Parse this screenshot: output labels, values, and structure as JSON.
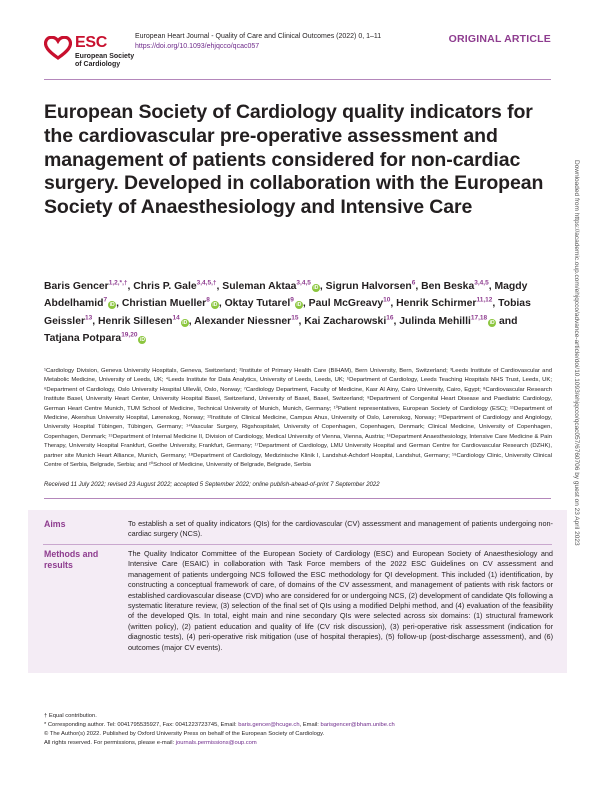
{
  "header": {
    "logo_text": "ESC",
    "logo_sub_1": "European Society",
    "logo_sub_2": "of Cardiology",
    "journal_line": "European Heart Journal - Quality of Care and Clinical Outcomes (2022) 0, 1–11",
    "doi": "https://doi.org/10.1093/ehjqcco/qcac057",
    "article_type": "ORIGINAL ARTICLE"
  },
  "side_note": "Downloaded from https://academic.oup.com/ehjqcco/advance-article/doi/10.1093/ehjqcco/qcac057/6760706 by guest on 23 April 2023",
  "title": "European Society of Cardiology quality indicators for the cardiovascular pre-operative assessment and management of patients considered for non-cardiac surgery. Developed in collaboration with the European Society of Anaesthesiology and Intensive Care",
  "authors": [
    {
      "name": "Baris Gencer",
      "sup": "1,2,*,†",
      "orcid": false
    },
    {
      "name": "Chris P. Gale",
      "sup": "3,4,5,†",
      "orcid": false
    },
    {
      "name": "Suleman Aktaa",
      "sup": "3,4,5",
      "orcid": true
    },
    {
      "name": "Sigrun Halvorsen",
      "sup": "6",
      "orcid": false
    },
    {
      "name": "Ben Beska",
      "sup": "3,4,5",
      "orcid": false
    },
    {
      "name": "Magdy Abdelhamid",
      "sup": "7",
      "orcid": true
    },
    {
      "name": "Christian Mueller",
      "sup": "8",
      "orcid": true
    },
    {
      "name": "Oktay Tutarel",
      "sup": "9",
      "orcid": true
    },
    {
      "name": "Paul McGreavy",
      "sup": "10",
      "orcid": false
    },
    {
      "name": "Henrik Schirmer",
      "sup": "11,12",
      "orcid": false
    },
    {
      "name": "Tobias Geissler",
      "sup": "13",
      "orcid": false
    },
    {
      "name": "Henrik Sillesen",
      "sup": "14",
      "orcid": true
    },
    {
      "name": "Alexander Niessner",
      "sup": "15",
      "orcid": false
    },
    {
      "name": "Kai Zacharowski",
      "sup": "16",
      "orcid": false
    },
    {
      "name": "Julinda Mehilli",
      "sup": "17,18",
      "orcid": true
    },
    {
      "name": "Tatjana Potpara",
      "sup": "19,20",
      "orcid": true
    }
  ],
  "authors_and": "and",
  "affiliations": "¹Cardiology Division, Geneva University Hospitals, Geneva, Switzerland; ²Institute of Primary Health Care (BIHAM), Bern University, Bern, Switzerland; ³Leeds Institute of Cardiovascular and Metabolic Medicine, University of Leeds, UK; ⁴Leeds Institute for Data Analytics, University of Leeds, Leeds, UK; ⁵Department of Cardiology, Leeds Teaching Hospitals NHS Trust, Leeds, UK; ⁶Department of Cardiology, Oslo University Hospital Ullevål, Oslo, Norway; ⁷Cardiology Department, Faculty of Medicine, Kasr Al Ainy, Cairo University, Cairo, Egypt; ⁸Cardiovascular Research Institute Basel, University Heart Center, University Hospital Basel, Switzerland, University of Basel, Basel, Switzerland; ⁹Department of Congenital Heart Disease and Paediatric Cardiology, German Heart Centre Munich, TUM School of Medicine, Technical University of Munich, Munich, Germany; ¹⁰Patient representatives, European Society of Cardiology (ESC); ¹¹Department of Medicine, Akershus University Hospital, Lørenskog, Norway; ¹²Institute of Clinical Medicine, Campus Ahus, University of Oslo, Lørenskog, Norway; ¹³Department of Cardiology and Angiology, University Hospital Tübingen, Tübingen, Germany; ¹⁴Vascular Surgery, Rigshospitalet, University of Copenhagen, Copenhagen, Denmark; Clinical Medicine, University of Copenhagen, Copenhagen, Denmark; ¹⁵Department of Internal Medicine II, Division of Cardiology, Medical University of Vienna, Vienna, Austria; ¹⁶Department Anaesthesiology, Intensive Care Medicine & Pain Therapy, University Hospital Frankfurt, Goethe University, Frankfurt, Germany; ¹⁷Department of Cardiology, LMU University Hospital and German Centre for Cardiovascular Research (DZHK), partner site Munich Heart Alliance, Munich, Germany; ¹⁸Department of Cardiology, Medizinische Klinik I, Landshut-Achdorf Hospital, Landshut, Germany; ¹⁹Cardiology Clinic, University Clinical Centre of Serbia, Belgrade, Serbia; and ²⁰School of Medicine, University of Belgrade, Belgrade, Serbia",
  "received": "Received 11 July 2022; revised 23 August 2022; accepted 5 September 2022; online publish-ahead-of-print 7 September 2022",
  "abstract": {
    "aims_label": "Aims",
    "aims_text": "To establish a set of quality indicators (QIs) for the cardiovascular (CV) assessment and management of patients undergoing non-cardiac surgery (NCS).",
    "methods_label_1": "Methods and",
    "methods_label_2": "results",
    "methods_text": "The Quality Indicator Committee of the European Society of Cardiology (ESC) and European Society of Anaesthesiology and Intensive Care (ESAIC) in collaboration with Task Force members of the 2022 ESC Guidelines on CV assessment and management of patients undergoing NCS followed the ESC methodology for QI development. This included (1) identification, by constructing a conceptual framework of care, of domains of the CV assessment, and management of patients with risk factors or established cardiovascular disease (CVD) who are considered for or undergoing NCS, (2) development of candidate QIs following a systematic literature review, (3) selection of the final set of QIs using a modified Delphi method, and (4) evaluation of the feasibility of the developed QIs. In total, eight main and nine secondary QIs were selected across six domains: (1) structural framework (written policy), (2) patient education and quality of life (CV risk discussion), (3) peri-operative risk assessment (indication for diagnostic tests), (4) peri-operative risk mitigation (use of hospital therapies), (5) follow-up (post-discharge assessment), and (6) outcomes (major CV events)."
  },
  "footnotes": {
    "equal": "† Equal contribution.",
    "corr_prefix": "* Corresponding author. Tel: 0041795535927, Fax: 0041223723745, Email: ",
    "email1": "baris.gencer@hcuge.ch",
    "email_sep": ", Email: ",
    "email2": "barisgencer@bham.unibe.ch",
    "copyright": "© The Author(s) 2022. Published by Oxford University Press on behalf of the European Society of Cardiology.",
    "perm_prefix": "All rights reserved. For permissions, please e-mail: ",
    "perm_email": "journals.permissions@oup.com"
  },
  "colors": {
    "accent": "#8e3c8f",
    "esc_red": "#c8102e",
    "abstract_bg": "#f4ecf5",
    "orcid_green": "#8cc63f"
  }
}
